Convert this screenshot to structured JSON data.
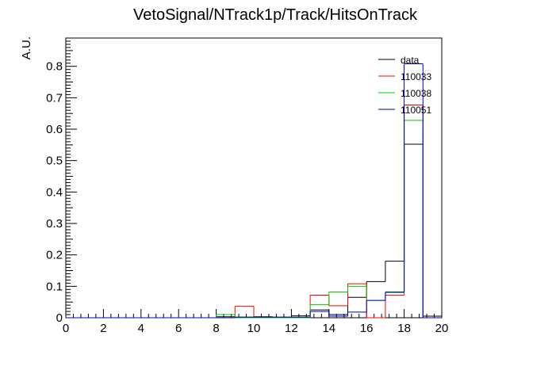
{
  "chart_data": {
    "type": "histogram-step",
    "title": "VetoSignal/NTrack1p/Track/HitsOnTrack",
    "xlabel": "",
    "ylabel": "A.U.",
    "xlim": [
      0,
      20
    ],
    "ylim": [
      0,
      0.89
    ],
    "x_ticks": [
      0,
      2,
      4,
      6,
      8,
      10,
      12,
      14,
      16,
      18,
      20
    ],
    "y_ticks": [
      0,
      0.1,
      0.2,
      0.3,
      0.4,
      0.5,
      0.6,
      0.7,
      0.8
    ],
    "x_tick_labels": [
      "0",
      "2",
      "4",
      "6",
      "8",
      "10",
      "12",
      "14",
      "16",
      "18",
      "20"
    ],
    "y_tick_labels": [
      "0",
      "0.1",
      "0.2",
      "0.3",
      "0.4",
      "0.5",
      "0.6",
      "0.7",
      "0.8"
    ],
    "bin_edges": [
      0,
      1,
      2,
      3,
      4,
      5,
      6,
      7,
      8,
      9,
      10,
      11,
      12,
      13,
      14,
      15,
      16,
      17,
      18,
      19,
      20
    ],
    "legend_position": "top-right",
    "series": [
      {
        "name": "data",
        "color": "#000000",
        "values": [
          0,
          0,
          0,
          0,
          0,
          0,
          0,
          0,
          0.003,
          0.002,
          0.003,
          0.002,
          0.006,
          0.025,
          0.01,
          0.065,
          0.115,
          0.18,
          0.552,
          0.005
        ]
      },
      {
        "name": "110033",
        "color": "#ff0000",
        "values": [
          0,
          0,
          0,
          0,
          0,
          0,
          0,
          0,
          0,
          0.037,
          0,
          0,
          0,
          0.072,
          0.038,
          0.108,
          0,
          0.072,
          0.677,
          0
        ]
      },
      {
        "name": "110038",
        "color": "#00cc00",
        "values": [
          0,
          0,
          0,
          0,
          0,
          0,
          0,
          0,
          0.01,
          0,
          0,
          0,
          0,
          0.042,
          0.082,
          0.1,
          0.055,
          0.08,
          0.628,
          0
        ]
      },
      {
        "name": "110051",
        "color": "#0000cc",
        "values": [
          0,
          0,
          0,
          0,
          0,
          0,
          0,
          0,
          0,
          0.002,
          0.002,
          0.002,
          0.002,
          0.02,
          0.005,
          0.018,
          0.055,
          0.082,
          0.808,
          0
        ]
      }
    ]
  }
}
